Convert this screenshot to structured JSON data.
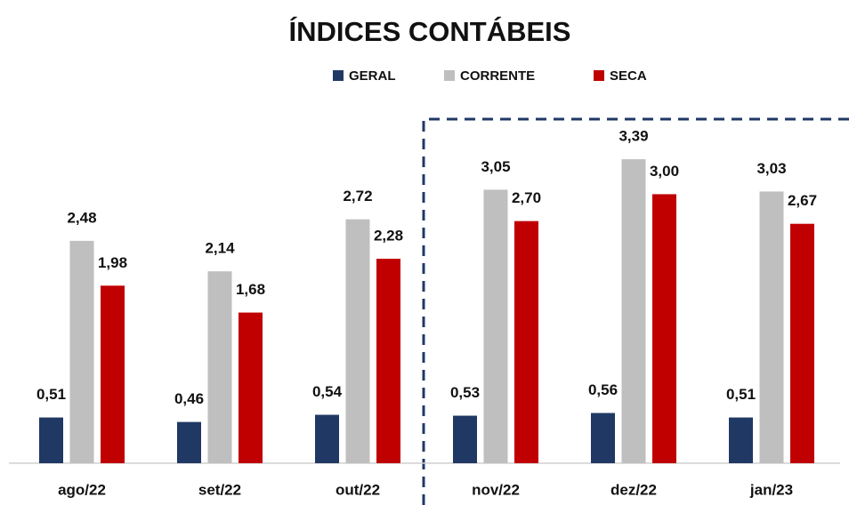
{
  "chart_data": {
    "type": "bar",
    "title": "ÍNDICES CONTÁBEIS",
    "categories": [
      "ago/22",
      "set/22",
      "out/22",
      "nov/22",
      "dez/22",
      "jan/23"
    ],
    "series": [
      {
        "name": "GERAL",
        "color": "#203864",
        "values": [
          0.51,
          0.46,
          0.54,
          0.53,
          0.56,
          0.51
        ],
        "value_labels": [
          "0,51",
          "0,46",
          "0,54",
          "0,53",
          "0,56",
          "0,51"
        ]
      },
      {
        "name": "CORRENTE",
        "color": "#bfbfbf",
        "values": [
          2.48,
          2.14,
          2.72,
          3.05,
          3.39,
          3.03
        ],
        "value_labels": [
          "2,48",
          "2,14",
          "2,72",
          "3,05",
          "3,39",
          "3,03"
        ]
      },
      {
        "name": "SECA",
        "color": "#c00000",
        "values": [
          1.98,
          1.68,
          2.28,
          2.7,
          3.0,
          2.67
        ],
        "value_labels": [
          "1,98",
          "1,68",
          "2,28",
          "2,70",
          "3,00",
          "2,67"
        ]
      }
    ],
    "ylim": [
      0,
      3.5
    ],
    "legend": "top"
  }
}
